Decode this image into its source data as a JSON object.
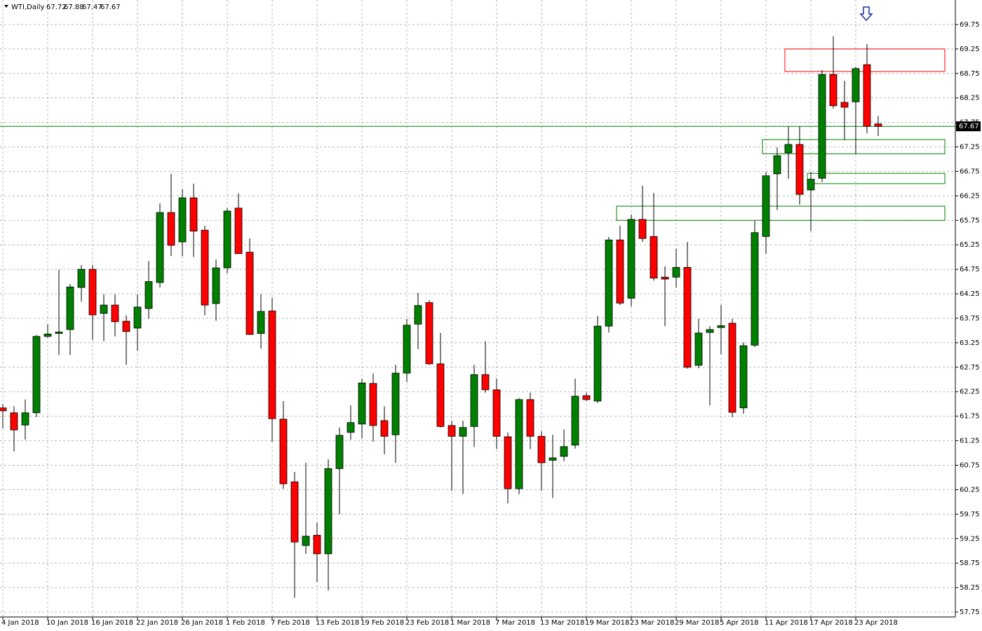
{
  "chart_data": {
    "type": "candlestick",
    "title": "WTI,Daily",
    "header_values": [
      67.72,
      67.88,
      67.47,
      67.67
    ],
    "categories": [
      "4 Jan 2018",
      null,
      null,
      null,
      "10 Jan 2018",
      null,
      null,
      null,
      "16 Jan 2018",
      null,
      null,
      null,
      "22 Jan 2018",
      null,
      null,
      null,
      "26 Jan 2018",
      null,
      null,
      null,
      "1 Feb 2018",
      null,
      null,
      null,
      "7 Feb 2018",
      null,
      null,
      null,
      "13 Feb 2018",
      null,
      null,
      null,
      "19 Feb 2018",
      null,
      null,
      null,
      "23 Feb 2018",
      null,
      null,
      null,
      "1 Mar 2018",
      null,
      null,
      null,
      "7 Mar 2018",
      null,
      null,
      null,
      "13 Mar 2018",
      null,
      null,
      null,
      "19 Mar 2018",
      null,
      null,
      null,
      "23 Mar 2018",
      null,
      null,
      null,
      "29 Mar 2018",
      null,
      null,
      null,
      "5 Apr 2018",
      null,
      null,
      null,
      "11 Apr 2018",
      null,
      null,
      null,
      "17 Apr 2018",
      null,
      null,
      null,
      "23 Apr 2018",
      null,
      null
    ],
    "open": [
      61.92,
      61.82,
      61.57,
      61.82,
      63.38,
      63.44,
      63.52,
      64.38,
      64.75,
      63.85,
      64.02,
      63.69,
      63.55,
      63.95,
      64.48,
      65.91,
      65.31,
      66.21,
      65.55,
      64.05,
      64.78,
      66.0,
      65.1,
      63.44,
      63.9,
      61.69,
      60.41,
      59.11,
      59.32,
      58.94,
      60.68,
      61.42,
      61.59,
      62.42,
      61.66,
      61.37,
      62.63,
      63.63,
      64.07,
      62.82,
      61.56,
      61.34,
      61.54,
      62.6,
      62.29,
      61.33,
      60.27,
      62.09,
      61.34,
      60.85,
      60.93,
      61.16,
      62.17,
      62.06,
      63.59,
      65.35,
      64.16,
      65.77,
      65.42,
      64.59,
      64.59,
      64.79,
      62.79,
      63.46,
      63.56,
      63.65,
      61.92,
      63.2,
      65.42,
      66.7,
      67.13,
      67.3,
      66.37,
      66.61,
      68.73,
      68.16,
      68.17,
      68.93,
      67.72
    ],
    "high": [
      62.0,
      61.95,
      62.09,
      63.41,
      63.63,
      64.74,
      64.45,
      64.84,
      64.84,
      64.24,
      64.24,
      63.81,
      64.24,
      64.92,
      66.1,
      66.7,
      66.39,
      66.5,
      65.64,
      64.95,
      66.0,
      66.3,
      65.38,
      64.24,
      64.17,
      62.06,
      60.61,
      60.8,
      59.58,
      60.87,
      61.52,
      61.97,
      62.52,
      62.62,
      61.95,
      62.8,
      63.74,
      64.27,
      64.12,
      63.45,
      61.66,
      61.66,
      62.8,
      63.28,
      62.52,
      61.42,
      62.12,
      62.23,
      61.44,
      61.37,
      61.48,
      62.52,
      62.23,
      63.8,
      65.41,
      65.64,
      65.87,
      66.46,
      66.31,
      64.81,
      65.17,
      65.31,
      63.74,
      63.59,
      64.02,
      63.74,
      63.26,
      65.74,
      66.74,
      67.24,
      67.67,
      67.67,
      66.74,
      68.82,
      69.51,
      68.6,
      68.89,
      69.35,
      67.88
    ],
    "low": [
      61.5,
      61.03,
      61.27,
      61.73,
      63.35,
      63.0,
      63.0,
      64.09,
      63.31,
      63.28,
      63.38,
      62.8,
      63.09,
      63.74,
      64.38,
      65.02,
      65.02,
      65.0,
      63.81,
      63.7,
      64.67,
      65.07,
      63.41,
      63.13,
      61.23,
      60.27,
      58.04,
      58.94,
      58.36,
      58.19,
      59.75,
      61.27,
      61.3,
      61.23,
      60.97,
      60.8,
      62.45,
      63.12,
      62.8,
      61.52,
      60.23,
      60.16,
      61.12,
      62.23,
      61.08,
      59.97,
      60.16,
      61.08,
      60.23,
      60.08,
      60.83,
      61.09,
      62.06,
      62.02,
      63.46,
      64.02,
      63.99,
      65.31,
      64.52,
      63.59,
      64.38,
      62.72,
      62.73,
      61.97,
      63.02,
      61.73,
      61.8,
      63.16,
      65.07,
      65.96,
      66.6,
      66.07,
      65.53,
      66.53,
      68.03,
      67.39,
      67.1,
      67.53,
      67.47
    ],
    "close": [
      61.86,
      61.47,
      61.82,
      63.38,
      63.43,
      63.47,
      64.39,
      64.75,
      63.82,
      64.02,
      63.68,
      63.48,
      63.98,
      64.5,
      65.91,
      65.24,
      66.21,
      65.53,
      64.02,
      64.78,
      65.94,
      65.07,
      63.42,
      63.89,
      61.7,
      60.37,
      59.18,
      59.3,
      58.94,
      60.68,
      61.36,
      61.62,
      62.43,
      61.56,
      61.34,
      62.63,
      63.61,
      64.01,
      62.82,
      61.54,
      61.34,
      61.52,
      62.6,
      62.29,
      61.34,
      60.27,
      62.09,
      61.34,
      60.8,
      60.9,
      61.13,
      62.16,
      62.09,
      63.59,
      65.35,
      64.06,
      65.77,
      65.38,
      64.57,
      64.55,
      64.79,
      62.75,
      63.45,
      63.52,
      63.6,
      61.83,
      63.19,
      65.5,
      66.66,
      67.07,
      67.3,
      66.28,
      66.59,
      68.73,
      68.09,
      68.06,
      68.85,
      67.67,
      67.67
    ],
    "up_color": "#008000",
    "down_color": "#ff0000",
    "last_price": 67.67,
    "last_price_color": "#008000",
    "zones": [
      {
        "start": 70,
        "top": 69.25,
        "bottom": 68.79,
        "color": "#ff0000"
      },
      {
        "start": 68,
        "top": 67.4,
        "bottom": 67.11,
        "color": "#008000"
      },
      {
        "start": 72,
        "top": 66.71,
        "bottom": 66.5,
        "color": "#008000"
      },
      {
        "start": 55,
        "top": 66.04,
        "bottom": 65.75,
        "color": "#008000"
      }
    ],
    "ylim": [
      57.65,
      70.25
    ],
    "yticks": [
      57.75,
      58.25,
      58.75,
      59.25,
      59.75,
      60.25,
      60.75,
      61.25,
      61.75,
      62.25,
      62.75,
      63.25,
      63.75,
      64.25,
      64.75,
      65.25,
      65.75,
      66.25,
      66.75,
      67.25,
      67.75,
      68.25,
      68.75,
      69.25,
      69.75
    ],
    "grid": true
  }
}
